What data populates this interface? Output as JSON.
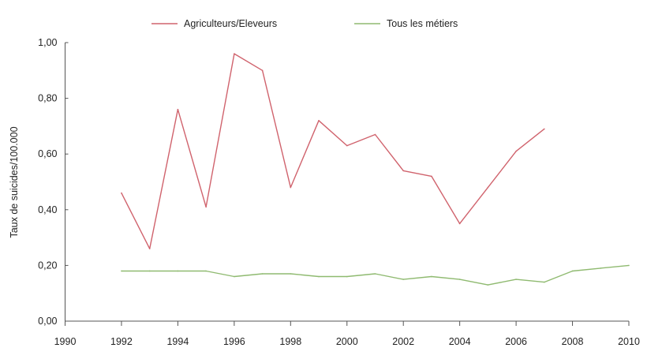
{
  "chart_data": {
    "type": "line",
    "title": "",
    "xlabel": "",
    "ylabel": "Taux de suicides/100.000",
    "xlim": [
      1990,
      2010
    ],
    "ylim": [
      0,
      1
    ],
    "x_ticks": [
      "1990",
      "1992",
      "1994",
      "1996",
      "1998",
      "2000",
      "2002",
      "2004",
      "2006",
      "2008",
      "2010"
    ],
    "y_ticks": [
      "0,00",
      "0,20",
      "0,40",
      "0,60",
      "0,80",
      "1,00"
    ],
    "grid": false,
    "legend_position": "top",
    "series": [
      {
        "name": "Agriculteurs/Eleveurs",
        "color": "#d0636d",
        "x": [
          1992,
          1993,
          1994,
          1995,
          1996,
          1997,
          1998,
          1999,
          2000,
          2001,
          2002,
          2003,
          2004,
          2005,
          2006,
          2007
        ],
        "y": [
          0.46,
          0.26,
          0.76,
          0.41,
          0.96,
          0.9,
          0.48,
          0.72,
          0.63,
          0.67,
          0.54,
          0.52,
          0.35,
          0.48,
          0.61,
          0.69
        ]
      },
      {
        "name": "Tous les métiers",
        "color": "#8fba70",
        "x": [
          1992,
          1993,
          1994,
          1995,
          1996,
          1997,
          1998,
          1999,
          2000,
          2001,
          2002,
          2003,
          2004,
          2005,
          2006,
          2007,
          2008,
          2009,
          2010
        ],
        "y": [
          0.18,
          0.18,
          0.18,
          0.18,
          0.16,
          0.17,
          0.17,
          0.16,
          0.16,
          0.17,
          0.15,
          0.16,
          0.15,
          0.13,
          0.15,
          0.14,
          0.18,
          0.19,
          0.2
        ]
      }
    ]
  }
}
